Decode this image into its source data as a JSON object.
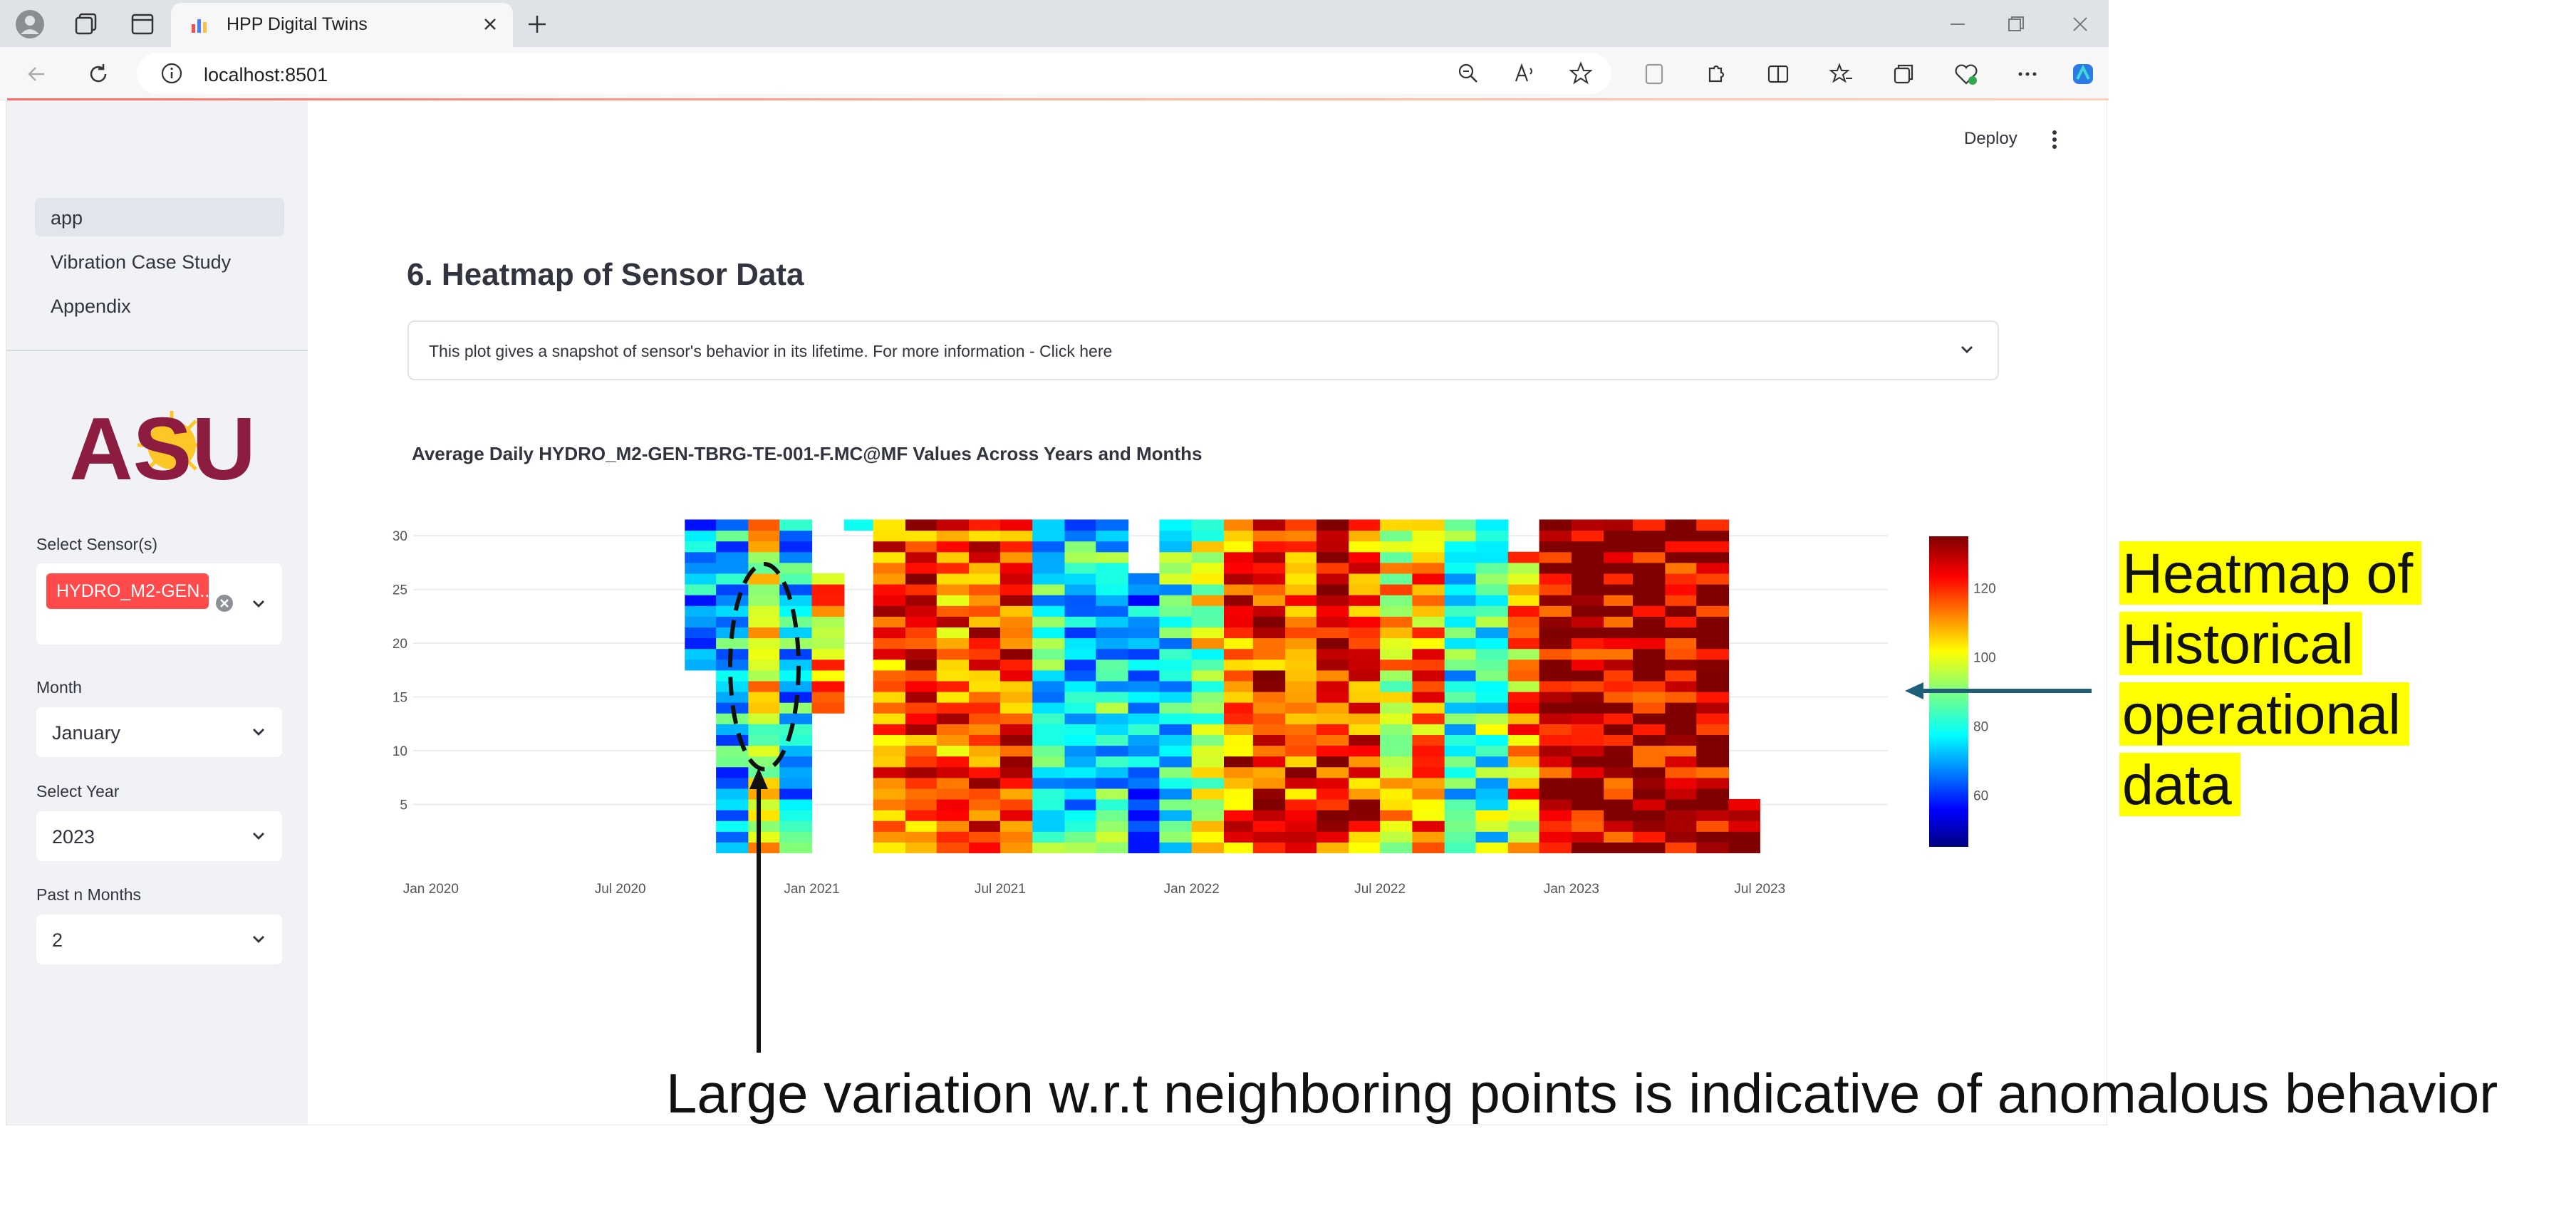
{
  "browser": {
    "tab_title": "HPP Digital Twins",
    "url": "localhost:8501"
  },
  "sidebar": {
    "nav": [
      {
        "label": "app",
        "active": true
      },
      {
        "label": "Vibration Case Study",
        "active": false
      },
      {
        "label": "Appendix",
        "active": false
      }
    ],
    "logo_text": "ASU",
    "sensor_label": "Select Sensor(s)",
    "sensor_chip": "HYDRO_M2-GEN...",
    "month_label": "Month",
    "month_value": "January",
    "year_label": "Select Year",
    "year_value": "2023",
    "pastn_label": "Past n Months",
    "pastn_value": "2"
  },
  "header": {
    "deploy_label": "Deploy"
  },
  "main": {
    "page_title": "6. Heatmap of Sensor Data",
    "expander_text": "This plot gives a snapshot of sensor's behavior in its lifetime. For more information - Click here"
  },
  "colors": {
    "primary": "#ff4b4b",
    "highlight": "#ffff00",
    "arrow": "#1f5f7a"
  },
  "annotations": {
    "side": [
      "Heatmap of",
      "Historical",
      "operational",
      "data"
    ],
    "bottom": "Large variation w.r.t neighboring points is indicative of anomalous behavior"
  },
  "chart_data": {
    "type": "heatmap",
    "title": "Average Daily HYDRO_M2-GEN-TBRG-TE-001-F.MC@MF Values Across Years and Months",
    "x_tick_labels": [
      "Jan 2020",
      "Jul 2020",
      "Jan 2021",
      "Jul 2021",
      "Jan 2022",
      "Jul 2022",
      "Jan 2023",
      "Jul 2023"
    ],
    "y_ticks": [
      5,
      10,
      15,
      20,
      25,
      30
    ],
    "ylim": [
      0,
      31
    ],
    "colorscale": "jet",
    "colorbar": {
      "range": [
        45,
        135
      ],
      "ticks": [
        60,
        80,
        100,
        120
      ]
    },
    "month_columns": [
      {
        "month": "2020-09",
        "mean": 72,
        "range": [
          18,
          31
        ]
      },
      {
        "month": "2020-10",
        "mean": 74,
        "range": [
          1,
          31
        ]
      },
      {
        "month": "2020-11",
        "mean": 100,
        "range": [
          1,
          31
        ]
      },
      {
        "month": "2020-12",
        "mean": 76,
        "range": [
          1,
          31
        ]
      },
      {
        "month": "2021-01",
        "mean": 110,
        "range": [
          14,
          26
        ]
      },
      {
        "month": "2021-02",
        "mean": 80,
        "range": [
          31,
          31
        ]
      },
      {
        "month": "2021-03",
        "mean": 118,
        "range": [
          1,
          31
        ]
      },
      {
        "month": "2021-04",
        "mean": 118,
        "range": [
          1,
          31
        ]
      },
      {
        "month": "2021-05",
        "mean": 115,
        "range": [
          1,
          31
        ]
      },
      {
        "month": "2021-06",
        "mean": 120,
        "range": [
          1,
          31
        ]
      },
      {
        "month": "2021-07",
        "mean": 118,
        "range": [
          1,
          31
        ]
      },
      {
        "month": "2021-08",
        "mean": 80,
        "range": [
          1,
          31
        ]
      },
      {
        "month": "2021-09",
        "mean": 78,
        "range": [
          1,
          31
        ]
      },
      {
        "month": "2021-10",
        "mean": 80,
        "range": [
          1,
          31
        ]
      },
      {
        "month": "2021-11",
        "mean": 70,
        "range": [
          1,
          26
        ]
      },
      {
        "month": "2021-12",
        "mean": 82,
        "range": [
          1,
          31
        ]
      },
      {
        "month": "2022-01",
        "mean": 95,
        "range": [
          1,
          31
        ]
      },
      {
        "month": "2022-02",
        "mean": 118,
        "range": [
          1,
          31
        ]
      },
      {
        "month": "2022-03",
        "mean": 120,
        "range": [
          1,
          31
        ]
      },
      {
        "month": "2022-04",
        "mean": 118,
        "range": [
          1,
          31
        ]
      },
      {
        "month": "2022-05",
        "mean": 122,
        "range": [
          1,
          31
        ]
      },
      {
        "month": "2022-06",
        "mean": 118,
        "range": [
          1,
          31
        ]
      },
      {
        "month": "2022-07",
        "mean": 102,
        "range": [
          1,
          31
        ]
      },
      {
        "month": "2022-08",
        "mean": 112,
        "range": [
          1,
          31
        ]
      },
      {
        "month": "2022-09",
        "mean": 80,
        "range": [
          1,
          31
        ]
      },
      {
        "month": "2022-10",
        "mean": 86,
        "range": [
          1,
          31
        ]
      },
      {
        "month": "2022-11",
        "mean": 108,
        "range": [
          1,
          28
        ]
      },
      {
        "month": "2022-12",
        "mean": 130,
        "range": [
          1,
          31
        ]
      },
      {
        "month": "2023-01",
        "mean": 130,
        "range": [
          1,
          31
        ]
      },
      {
        "month": "2023-02",
        "mean": 130,
        "range": [
          1,
          31
        ]
      },
      {
        "month": "2023-03",
        "mean": 130,
        "range": [
          1,
          31
        ]
      },
      {
        "month": "2023-04",
        "mean": 130,
        "range": [
          1,
          31
        ]
      },
      {
        "month": "2023-05",
        "mean": 130,
        "range": [
          1,
          31
        ]
      },
      {
        "month": "2023-06",
        "mean": 130,
        "range": [
          1,
          5
        ]
      }
    ]
  }
}
